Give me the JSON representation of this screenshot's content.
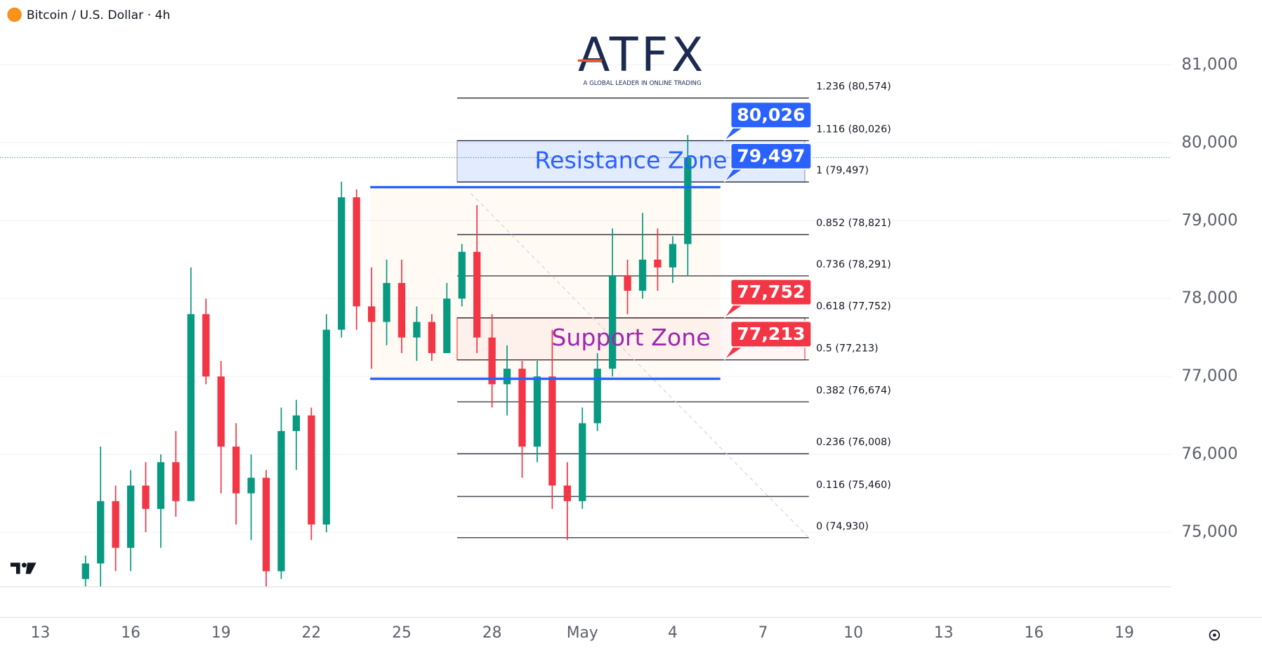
{
  "header": {
    "symbol": "Bitcoin / U.S. Dollar · 4h"
  },
  "logo": {
    "name": "ATFX",
    "tagline": "A GLOBAL LEADER IN ONLINE TRADING"
  },
  "chart_data": {
    "type": "candlestick",
    "x": [
      1.5,
      2,
      2.5,
      3,
      3.5,
      4,
      4.5,
      5,
      5.5,
      6,
      6.5,
      7,
      7.5,
      8,
      8.5,
      9,
      9.5,
      10,
      10.5,
      11,
      11.5,
      12,
      12.5,
      13,
      13.5,
      14,
      14.5,
      15,
      15.5,
      16,
      16.5,
      17,
      17.5,
      18,
      18.5,
      19,
      19.5,
      20,
      20.5,
      21,
      21.5
    ],
    "open": [
      74400,
      74600,
      75400,
      74800,
      75600,
      75300,
      75900,
      75400,
      77800,
      77000,
      76100,
      75500,
      75700,
      74500,
      76300,
      76500,
      75100,
      77600,
      79300,
      77900,
      77700,
      78200,
      77500,
      77700,
      77300,
      78000,
      78600,
      77500,
      76900,
      77100,
      76100,
      77000,
      75600,
      75400,
      76400,
      77100,
      78300,
      78100,
      78500,
      78400,
      78700
    ],
    "high": [
      74700,
      76100,
      75600,
      75800,
      75900,
      76000,
      76300,
      78400,
      78000,
      77200,
      76400,
      76000,
      75800,
      76600,
      76700,
      76600,
      77800,
      79500,
      79400,
      78400,
      78500,
      78500,
      77900,
      77800,
      78200,
      78700,
      79200,
      77800,
      77400,
      77200,
      77200,
      77600,
      75900,
      76600,
      77300,
      78900,
      78500,
      79100,
      78900,
      78800,
      80100
    ],
    "low": [
      74300,
      74300,
      74500,
      74500,
      75000,
      74800,
      75200,
      75400,
      76900,
      75500,
      75100,
      74900,
      74300,
      74400,
      75800,
      74900,
      75000,
      77500,
      77600,
      77100,
      77400,
      77300,
      77200,
      77200,
      77300,
      77900,
      77300,
      76600,
      76500,
      75700,
      75900,
      75300,
      74900,
      75300,
      76300,
      77000,
      77800,
      78000,
      78100,
      78200,
      78300
    ],
    "close": [
      74600,
      75400,
      74800,
      75600,
      75300,
      75900,
      75400,
      77800,
      77000,
      76100,
      75500,
      75700,
      74500,
      76300,
      76500,
      75100,
      77600,
      79300,
      77900,
      77700,
      78200,
      77500,
      77700,
      77300,
      78000,
      78600,
      77500,
      76900,
      77100,
      76100,
      77000,
      75600,
      75400,
      76400,
      77100,
      78300,
      78100,
      78500,
      78400,
      78700,
      79810
    ],
    "up_color": "#089981",
    "down_color": "#f23645",
    "xlim": [
      -1.34,
      37.55
    ],
    "xticks": [
      {
        "value": 0,
        "label": "13"
      },
      {
        "value": 3,
        "label": "16"
      },
      {
        "value": 6,
        "label": "19"
      },
      {
        "value": 9,
        "label": "22"
      },
      {
        "value": 12,
        "label": "25"
      },
      {
        "value": 15,
        "label": "28"
      },
      {
        "value": 18,
        "label": "May"
      },
      {
        "value": 21,
        "label": "4"
      },
      {
        "value": 24,
        "label": "7"
      },
      {
        "value": 27,
        "label": "10"
      },
      {
        "value": 30,
        "label": "13"
      },
      {
        "value": 33,
        "label": "16"
      },
      {
        "value": 36,
        "label": "19"
      }
    ],
    "ylim": [
      74300,
      81830
    ],
    "yticks": [
      {
        "value": 75000,
        "label": "75,000"
      },
      {
        "value": 76000,
        "label": "76,000"
      },
      {
        "value": 77000,
        "label": "77,000"
      },
      {
        "value": 78000,
        "label": "78,000"
      },
      {
        "value": 79000,
        "label": "79,000"
      },
      {
        "value": 80000,
        "label": "80,000"
      },
      {
        "value": 81000,
        "label": "81,000"
      }
    ],
    "grid": true,
    "fibonacci": [
      {
        "value": 80574,
        "label": "1.236 (80,574)"
      },
      {
        "value": 80026,
        "label": "1.116 (80,026)"
      },
      {
        "value": 79497,
        "label": "1 (79,497)"
      },
      {
        "value": 78821,
        "label": "0.852 (78,821)"
      },
      {
        "value": 78291,
        "label": "0.736 (78,291)"
      },
      {
        "value": 77752,
        "label": "0.618 (77,752)"
      },
      {
        "value": 77213,
        "label": "0.5 (77,213)"
      },
      {
        "value": 76674,
        "label": "0.382 (76,674)"
      },
      {
        "value": 76008,
        "label": "0.236 (76,008)"
      },
      {
        "value": 75460,
        "label": "0.116 (75,460)"
      },
      {
        "value": 74930,
        "label": "0 (74,930)"
      }
    ],
    "zones": [
      {
        "name": "Resistance Zone",
        "low": 79497,
        "high": 80026,
        "color": "#2962ff"
      },
      {
        "name": "Support Zone",
        "low": 77213,
        "high": 77752,
        "color": "#9c27b0"
      }
    ],
    "price_labels": [
      {
        "value": 80026,
        "label": "80,026",
        "color": "#2962ff"
      },
      {
        "value": 79497,
        "label": "79,497",
        "color": "#2962ff"
      },
      {
        "value": 77752,
        "label": "77,752",
        "color": "#f23645"
      },
      {
        "value": 77213,
        "label": "77,213",
        "color": "#f23645"
      }
    ],
    "levels": [
      79430,
      76970
    ]
  }
}
